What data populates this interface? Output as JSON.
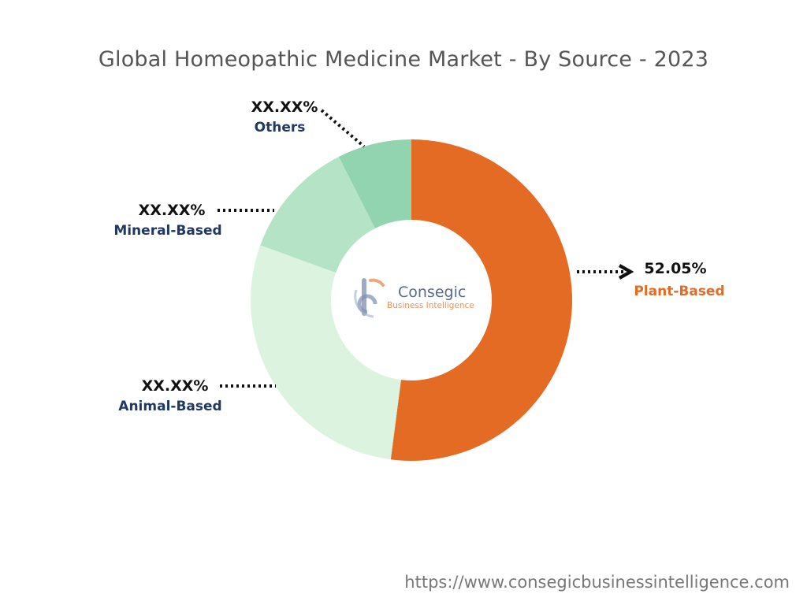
{
  "colors": {
    "title": "#555555",
    "label_text": "#111111",
    "category_text": "#1f3864",
    "highlight": "#e36b24",
    "watermark_primary": "#1f3864",
    "watermark_accent": "#e36b24",
    "url": "#777777"
  },
  "watermark": {
    "name": "Consegic",
    "sub": "Business Intelligence"
  },
  "source_url": "https://www.consegicbusinessintelligence.com",
  "chart_data": {
    "type": "pie",
    "donut": true,
    "title": "Global Homeopathic Medicine Market - By Source - 2023",
    "start_angle_deg": 0,
    "direction": "clockwise",
    "legend": "none",
    "slices": [
      {
        "category": "Plant-Based",
        "value": 52.05,
        "label": "52.05%",
        "color": "#e36b24",
        "highlight": true,
        "side": "right"
      },
      {
        "category": "Animal-Based",
        "value": 28.5,
        "label": "XX.XX%",
        "color": "#dcf3e0",
        "highlight": false,
        "side": "left"
      },
      {
        "category": "Mineral-Based",
        "value": 12.0,
        "label": "XX.XX%",
        "color": "#b4e3c5",
        "highlight": false,
        "side": "left"
      },
      {
        "category": "Others",
        "value": 7.45,
        "label": "XX.XX%",
        "color": "#93d4b0",
        "highlight": false,
        "side": "top-left"
      }
    ]
  }
}
